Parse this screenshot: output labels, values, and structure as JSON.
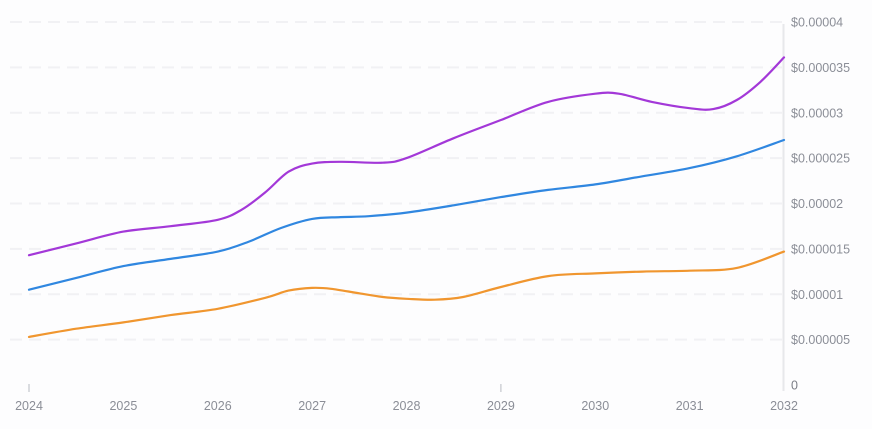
{
  "chart_data": {
    "type": "line",
    "title": "",
    "xlabel": "",
    "ylabel": "",
    "legend": "none",
    "grid": "horizontal-dashed",
    "xlim": [
      2024,
      2032
    ],
    "ylim": [
      0,
      4e-05
    ],
    "categories": [
      2024,
      2025,
      2026,
      2027,
      2028,
      2029,
      2030,
      2031,
      2032
    ],
    "x_tick_labels": [
      "2024",
      "2025",
      "2026",
      "2027",
      "2028",
      "2029",
      "2030",
      "2031",
      "2032"
    ],
    "x_tick_marks_years": [
      2024,
      2029
    ],
    "y_ticks": [
      {
        "label": "$0.00004",
        "value": 4e-05
      },
      {
        "label": "$0.000035",
        "value": 3.5e-05
      },
      {
        "label": "$0.00003",
        "value": 3e-05
      },
      {
        "label": "$0.000025",
        "value": 2.5e-05
      },
      {
        "label": "$0.00002",
        "value": 2e-05
      },
      {
        "label": "$0.000015",
        "value": 1.5e-05
      },
      {
        "label": "$0.00001",
        "value": 1e-05
      },
      {
        "label": "$0.000005",
        "value": 5e-06
      },
      {
        "label": "0",
        "value": 0
      }
    ],
    "series": [
      {
        "name": "purple-line",
        "color": "#a338d8",
        "values": [
          1.43e-05,
          1.69e-05,
          1.82e-05,
          2.44e-05,
          2.5e-05,
          2.92e-05,
          3.21e-05,
          3.05e-05,
          3.61e-05
        ],
        "points": [
          [
            2024,
            1.43e-05
          ],
          [
            2024.5,
            1.56e-05
          ],
          [
            2025,
            1.69e-05
          ],
          [
            2025.5,
            1.75e-05
          ],
          [
            2026,
            1.82e-05
          ],
          [
            2026.25,
            1.93e-05
          ],
          [
            2026.5,
            2.12e-05
          ],
          [
            2026.75,
            2.35e-05
          ],
          [
            2027,
            2.44e-05
          ],
          [
            2027.3,
            2.46e-05
          ],
          [
            2027.75,
            2.45e-05
          ],
          [
            2028,
            2.5e-05
          ],
          [
            2028.5,
            2.72e-05
          ],
          [
            2029,
            2.92e-05
          ],
          [
            2029.5,
            3.12e-05
          ],
          [
            2030,
            3.21e-05
          ],
          [
            2030.25,
            3.21e-05
          ],
          [
            2030.6,
            3.12e-05
          ],
          [
            2031,
            3.05e-05
          ],
          [
            2031.25,
            3.04e-05
          ],
          [
            2031.5,
            3.14e-05
          ],
          [
            2031.75,
            3.34e-05
          ],
          [
            2032,
            3.61e-05
          ]
        ]
      },
      {
        "name": "blue-line",
        "color": "#3087e0",
        "values": [
          1.05e-05,
          1.31e-05,
          1.47e-05,
          1.83e-05,
          1.9e-05,
          2.07e-05,
          2.21e-05,
          2.39e-05,
          2.7e-05
        ],
        "points": [
          [
            2024,
            1.05e-05
          ],
          [
            2024.5,
            1.18e-05
          ],
          [
            2025,
            1.31e-05
          ],
          [
            2025.5,
            1.39e-05
          ],
          [
            2026,
            1.47e-05
          ],
          [
            2026.33,
            1.58e-05
          ],
          [
            2026.67,
            1.73e-05
          ],
          [
            2027,
            1.83e-05
          ],
          [
            2027.3,
            1.85e-05
          ],
          [
            2027.6,
            1.86e-05
          ],
          [
            2028,
            1.9e-05
          ],
          [
            2028.5,
            1.98e-05
          ],
          [
            2029,
            2.07e-05
          ],
          [
            2029.5,
            2.15e-05
          ],
          [
            2030,
            2.21e-05
          ],
          [
            2030.5,
            2.3e-05
          ],
          [
            2031,
            2.39e-05
          ],
          [
            2031.5,
            2.52e-05
          ],
          [
            2032,
            2.7e-05
          ]
        ]
      },
      {
        "name": "orange-line",
        "color": "#f0962f",
        "values": [
          5.3e-06,
          6.9e-06,
          8.4e-06,
          1.07e-05,
          9.5e-06,
          1.08e-05,
          1.23e-05,
          1.26e-05,
          1.47e-05
        ],
        "points": [
          [
            2024,
            5.3e-06
          ],
          [
            2024.5,
            6.2e-06
          ],
          [
            2025,
            6.9e-06
          ],
          [
            2025.5,
            7.7e-06
          ],
          [
            2026,
            8.4e-06
          ],
          [
            2026.5,
            9.6e-06
          ],
          [
            2026.75,
            1.04e-05
          ],
          [
            2027,
            1.07e-05
          ],
          [
            2027.2,
            1.06e-05
          ],
          [
            2027.5,
            1.01e-05
          ],
          [
            2027.75,
            9.7e-06
          ],
          [
            2028,
            9.5e-06
          ],
          [
            2028.3,
            9.4e-06
          ],
          [
            2028.6,
            9.7e-06
          ],
          [
            2029,
            1.08e-05
          ],
          [
            2029.5,
            1.2e-05
          ],
          [
            2030,
            1.23e-05
          ],
          [
            2030.5,
            1.25e-05
          ],
          [
            2031,
            1.26e-05
          ],
          [
            2031.5,
            1.29e-05
          ],
          [
            2032,
            1.47e-05
          ]
        ]
      }
    ],
    "colors": {
      "background": "#fdfdfe",
      "axis_line": "#e7e8eb",
      "grid_line": "#f1f1f4",
      "tick_mark": "#cfd1d6",
      "label_text": "#8b8e97"
    }
  }
}
